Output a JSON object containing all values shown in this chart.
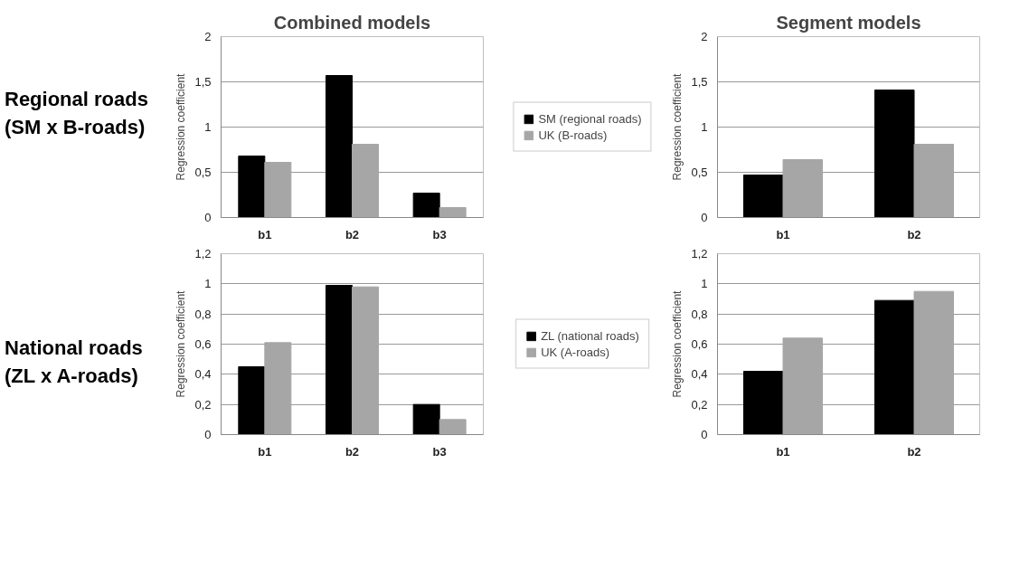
{
  "chart_data": [
    {
      "type": "bar",
      "title": "Combined models",
      "ylabel": "Regression coefficient",
      "annotations": [
        "Regional roads (SM x B-roads)"
      ],
      "categories": [
        "b1",
        "b2",
        "b3"
      ],
      "series": [
        {
          "name": "SM (regional roads)",
          "color": "#000000",
          "values": [
            0.68,
            1.57,
            0.27
          ]
        },
        {
          "name": "UK (B-roads)",
          "color": "#a6a6a6",
          "values": [
            0.61,
            0.81,
            0.11
          ]
        }
      ],
      "ylim": [
        0,
        2
      ],
      "yticks": [
        0,
        {
          "value": 0.5,
          "label": "0,5"
        },
        1,
        {
          "value": 1.5,
          "label": "1,5"
        },
        2
      ],
      "grid": "y",
      "legend": "right"
    },
    {
      "type": "bar",
      "title": "Segment models",
      "ylabel": "Regression coefficient",
      "categories": [
        "b1",
        "b2"
      ],
      "series": [
        {
          "color": "#000000",
          "values": [
            0.47,
            1.41
          ]
        },
        {
          "color": "#a6a6a6",
          "values": [
            0.64,
            0.81
          ]
        }
      ],
      "ylim": [
        0,
        2
      ],
      "yticks": [
        0,
        {
          "value": 0.5,
          "label": "0,5"
        },
        1,
        {
          "value": 1.5,
          "label": "1,5"
        },
        2
      ],
      "grid": "y"
    },
    {
      "type": "bar",
      "ylabel": "Regression coefficient",
      "annotations": [
        "National roads (ZL x A-roads)"
      ],
      "categories": [
        "b1",
        "b2",
        "b3"
      ],
      "series": [
        {
          "name": "ZL (national roads)",
          "color": "#000000",
          "values": [
            0.45,
            0.99,
            0.2
          ]
        },
        {
          "name": "UK (A-roads)",
          "color": "#a6a6a6",
          "values": [
            0.61,
            0.98,
            0.1
          ]
        }
      ],
      "ylim": [
        0,
        1.2
      ],
      "yticks": [
        0,
        {
          "value": 0.2,
          "label": "0,2"
        },
        {
          "value": 0.4,
          "label": "0,4"
        },
        {
          "value": 0.6,
          "label": "0,6"
        },
        {
          "value": 0.8,
          "label": "0,8"
        },
        1,
        {
          "value": 1.2,
          "label": "1,2"
        }
      ],
      "grid": "y",
      "legend": "right"
    },
    {
      "type": "bar",
      "ylabel": "Regression coefficient",
      "categories": [
        "b1",
        "b2"
      ],
      "series": [
        {
          "color": "#000000",
          "values": [
            0.42,
            0.89
          ]
        },
        {
          "color": "#a6a6a6",
          "values": [
            0.64,
            0.95
          ]
        }
      ],
      "ylim": [
        0,
        1.2
      ],
      "yticks": [
        0,
        {
          "value": 0.2,
          "label": "0,2"
        },
        {
          "value": 0.4,
          "label": "0,4"
        },
        {
          "value": 0.6,
          "label": "0,6"
        },
        {
          "value": 0.8,
          "label": "0,8"
        },
        1,
        {
          "value": 1.2,
          "label": "1,2"
        }
      ],
      "grid": "y"
    }
  ]
}
